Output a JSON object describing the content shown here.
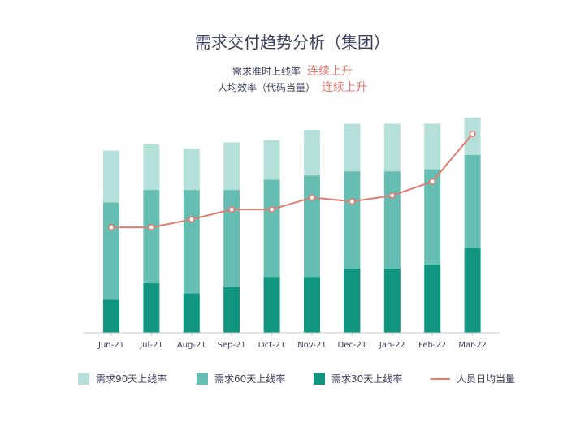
{
  "title": "需求交付趋势分析（集团）",
  "notes": [
    {
      "label": "需求准时上线率",
      "tag": "连续上升"
    },
    {
      "label": "人均效率（代码当量）",
      "tag": "连续上升"
    }
  ],
  "colors": {
    "s90": "#b5e0da",
    "s60": "#66beb3",
    "s30": "#0f9580",
    "line": "#e07b72",
    "axis": "#c9c9c9"
  },
  "chart_data": {
    "type": "bar",
    "stacked": true,
    "categories": [
      "Jun-21",
      "Jul-21",
      "Aug-21",
      "Sep-21",
      "Oct-21",
      "Nov-21",
      "Dec-21",
      "Jan-22",
      "Feb-22",
      "Mar-22"
    ],
    "ylim": [
      0,
      100
    ],
    "series": [
      {
        "name": "需求30天上线率",
        "values": [
          16,
          24,
          19,
          22,
          27,
          27,
          31,
          31,
          33,
          41
        ]
      },
      {
        "name": "需求60天上线率",
        "values": [
          47,
          45,
          50,
          47,
          47,
          49,
          47,
          47,
          46,
          45
        ]
      },
      {
        "name": "需求90天上线率",
        "values": [
          25,
          22,
          20,
          23,
          19,
          22,
          23,
          23,
          22,
          18
        ]
      }
    ],
    "line": {
      "name": "人员日均当量",
      "values": [
        53,
        53,
        57,
        62,
        62,
        68,
        66,
        69,
        76,
        100
      ],
      "ylim": [
        0,
        100
      ]
    },
    "grid": false,
    "legend_position": "bottom"
  }
}
